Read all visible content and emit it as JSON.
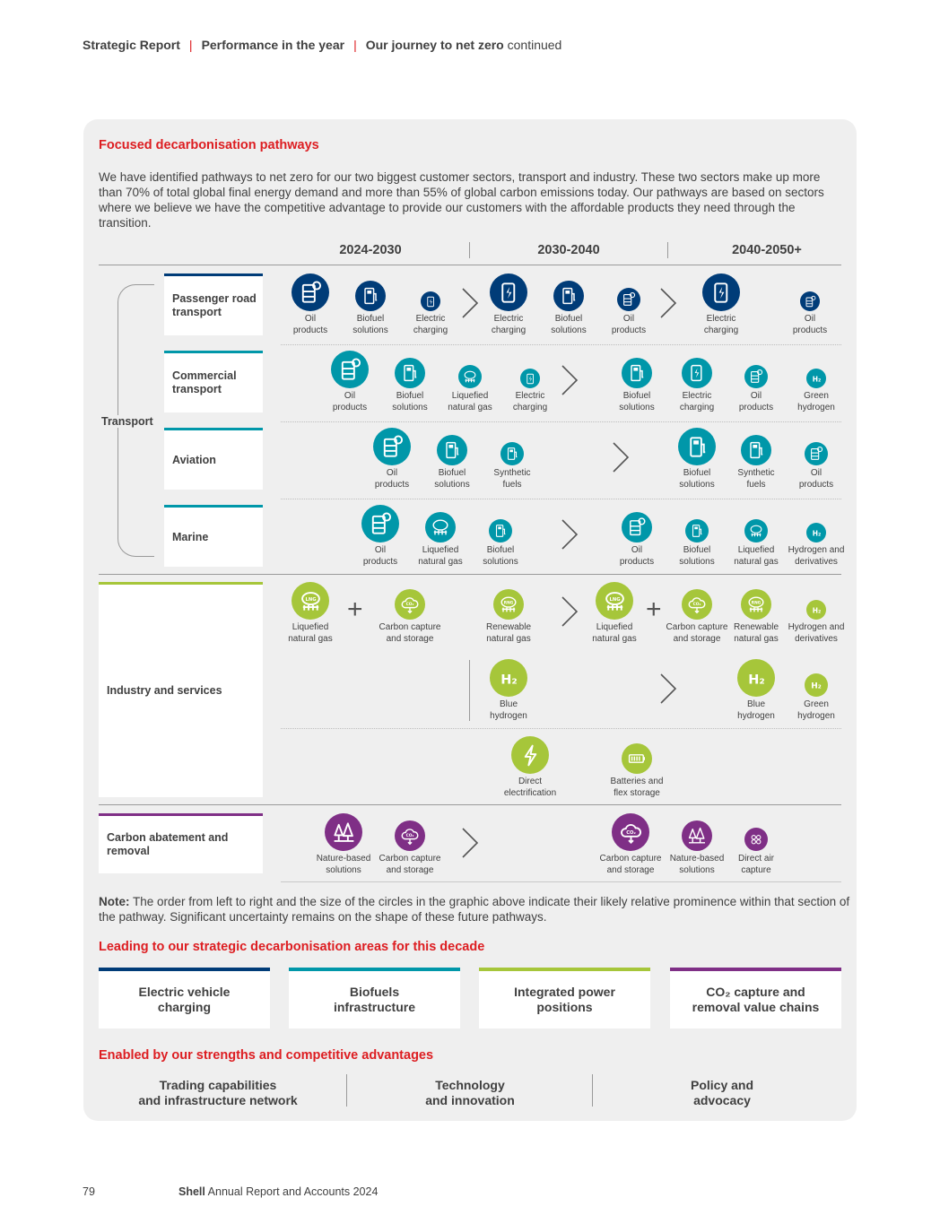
{
  "header": {
    "c1": "Strategic Report",
    "c2": "Performance in the year",
    "c3": "Our journey to net zero",
    "c3_suffix": "continued"
  },
  "section_title": "Focused decarbonisation pathways",
  "intro": "We have identified pathways to net zero for our two biggest customer sectors, transport and industry. These two sectors make up more than 70% of total global final energy demand and more than 55% of global carbon emissions today. Our pathways are based on sectors where we believe we have the competitive advantage to provide our customers with the affordable products they need through the transition.",
  "periods": [
    "2024-2030",
    "2030-2040",
    "2040-2050+"
  ],
  "colors": {
    "navy": "#003c78",
    "teal": "#0097a9",
    "lime": "#a6c63a",
    "purple": "#7f2f86",
    "red": "#dd1d21"
  },
  "transport_label": "Transport",
  "sectors": {
    "passenger": "Passenger road transport",
    "commercial": "Commercial transport",
    "aviation": "Aviation",
    "marine": "Marine",
    "industry": "Industry and services",
    "carbon": "Carbon abatement and removal"
  },
  "rows": {
    "passenger": [
      {
        "l1": "Oil",
        "l2": "products",
        "icon": "oil-drum-icon"
      },
      {
        "l1": "Biofuel",
        "l2": "solutions",
        "icon": "fuel-pump-icon"
      },
      {
        "l1": "Electric",
        "l2": "charging",
        "icon": "charger-icon"
      },
      {
        "l1": "Electric",
        "l2": "charging",
        "icon": "charger-icon"
      },
      {
        "l1": "Biofuel",
        "l2": "solutions",
        "icon": "fuel-pump-icon"
      },
      {
        "l1": "Oil",
        "l2": "products",
        "icon": "oil-drum-icon"
      },
      {
        "l1": "Electric",
        "l2": "charging",
        "icon": "charger-icon"
      },
      {
        "l1": "Oil",
        "l2": "products",
        "icon": "oil-drum-icon"
      }
    ],
    "commercial": [
      {
        "l1": "Oil",
        "l2": "products",
        "icon": "oil-drum-icon"
      },
      {
        "l1": "Biofuel",
        "l2": "solutions",
        "icon": "fuel-pump-icon"
      },
      {
        "l1": "Liquefied",
        "l2": "natural gas",
        "icon": "lng-tank-icon"
      },
      {
        "l1": "Electric",
        "l2": "charging",
        "icon": "charger-icon"
      },
      {
        "l1": "Biofuel",
        "l2": "solutions",
        "icon": "fuel-pump-icon"
      },
      {
        "l1": "Electric",
        "l2": "charging",
        "icon": "charger-icon"
      },
      {
        "l1": "Oil",
        "l2": "products",
        "icon": "oil-drum-icon"
      },
      {
        "l1": "Green",
        "l2": "hydrogen",
        "icon": "hydrogen-icon"
      }
    ],
    "aviation": [
      {
        "l1": "Oil",
        "l2": "products",
        "icon": "oil-drum-icon"
      },
      {
        "l1": "Biofuel",
        "l2": "solutions",
        "icon": "fuel-pump-icon"
      },
      {
        "l1": "Synthetic",
        "l2": "fuels",
        "icon": "fuel-pump-icon"
      },
      {
        "l1": "Biofuel",
        "l2": "solutions",
        "icon": "fuel-pump-icon"
      },
      {
        "l1": "Synthetic",
        "l2": "fuels",
        "icon": "fuel-pump-icon"
      },
      {
        "l1": "Oil",
        "l2": "products",
        "icon": "oil-drum-icon"
      }
    ],
    "marine": [
      {
        "l1": "Oil",
        "l2": "products",
        "icon": "oil-drum-icon"
      },
      {
        "l1": "Liquefied",
        "l2": "natural gas",
        "icon": "lng-tank-icon"
      },
      {
        "l1": "Biofuel",
        "l2": "solutions",
        "icon": "fuel-pump-icon"
      },
      {
        "l1": "Oil",
        "l2": "products",
        "icon": "oil-drum-icon"
      },
      {
        "l1": "Biofuel",
        "l2": "solutions",
        "icon": "fuel-pump-icon"
      },
      {
        "l1": "Liquefied",
        "l2": "natural gas",
        "icon": "lng-tank-icon"
      },
      {
        "l1": "Hydrogen and",
        "l2": "derivatives",
        "icon": "hydrogen-icon"
      }
    ],
    "industry1": [
      {
        "l1": "Liquefied",
        "l2": "natural gas",
        "icon": "lng-tank-icon",
        "text": "LNG"
      },
      {
        "l1": "Carbon capture",
        "l2": "and storage",
        "icon": "co2-cloud-icon",
        "text": "CO₂"
      },
      {
        "l1": "Renewable",
        "l2": "natural gas",
        "icon": "rng-tank-icon",
        "text": "RNG"
      },
      {
        "l1": "Liquefied",
        "l2": "natural gas",
        "icon": "lng-tank-icon",
        "text": "LNG"
      },
      {
        "l1": "Carbon capture",
        "l2": "and storage",
        "icon": "co2-cloud-icon",
        "text": "CO₂"
      },
      {
        "l1": "Renewable",
        "l2": "natural gas",
        "icon": "rng-tank-icon",
        "text": "RNG"
      },
      {
        "l1": "Hydrogen and",
        "l2": "derivatives",
        "icon": "hydrogen-icon",
        "text": "H₂"
      }
    ],
    "industry2": [
      {
        "l1": "Blue",
        "l2": "hydrogen",
        "icon": "hydrogen-icon",
        "text": "H₂"
      },
      {
        "l1": "Blue",
        "l2": "hydrogen",
        "icon": "hydrogen-icon",
        "text": "H₂"
      },
      {
        "l1": "Green",
        "l2": "hydrogen",
        "icon": "hydrogen-icon",
        "text": "H₂"
      }
    ],
    "industry3": [
      {
        "l1": "Direct",
        "l2": "electrification",
        "icon": "lightning-icon"
      },
      {
        "l1": "Batteries and",
        "l2": "flex storage",
        "icon": "battery-icon"
      }
    ],
    "carbon": [
      {
        "l1": "Nature-based",
        "l2": "solutions",
        "icon": "trees-icon"
      },
      {
        "l1": "Carbon capture",
        "l2": "and storage",
        "icon": "co2-cloud-icon",
        "text": "CO₂"
      },
      {
        "l1": "Carbon capture",
        "l2": "and storage",
        "icon": "co2-cloud-icon",
        "text": "CO₂"
      },
      {
        "l1": "Nature-based",
        "l2": "solutions",
        "icon": "trees-icon"
      },
      {
        "l1": "Direct air",
        "l2": "capture",
        "icon": "air-capture-icon"
      }
    ]
  },
  "note_label": "Note:",
  "note": "The order from left to right and the size of the circles in the graphic above indicate their likely relative prominence within that section of the pathway. Significant uncertainty remains on the shape of these future pathways.",
  "areas_title": "Leading to our strategic decarbonisation areas for this decade",
  "areas": [
    {
      "l1": "Electric vehicle",
      "l2": "charging"
    },
    {
      "l1": "Biofuels",
      "l2": "infrastructure"
    },
    {
      "l1": "Integrated power",
      "l2": "positions"
    },
    {
      "l1": "CO₂ capture and",
      "l2": "removal value chains"
    }
  ],
  "strengths_title": "Enabled by our strengths and competitive advantages",
  "strengths": [
    {
      "l1": "Trading capabilities",
      "l2": "and infrastructure network"
    },
    {
      "l1": "Technology",
      "l2": "and innovation"
    },
    {
      "l1": "Policy and",
      "l2": "advocacy"
    }
  ],
  "footer": {
    "page": "79",
    "brand": "Shell",
    "report": "Annual Report and Accounts 2024"
  }
}
